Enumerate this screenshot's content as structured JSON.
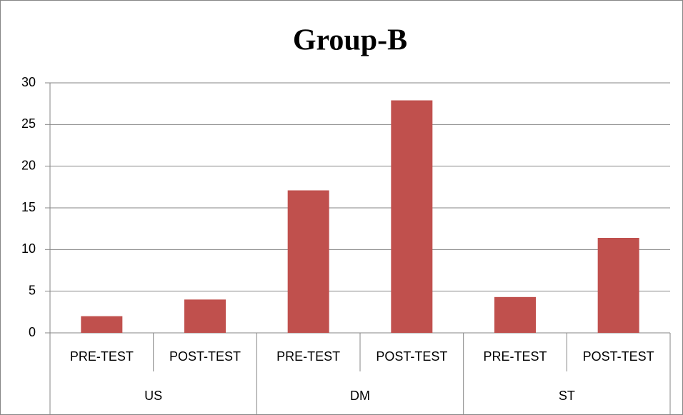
{
  "chart_data": {
    "type": "bar",
    "title": "Group-B",
    "groups": [
      "US",
      "DM",
      "ST"
    ],
    "categories": [
      "PRE-TEST",
      "POST-TEST",
      "PRE-TEST",
      "POST-TEST",
      "PRE-TEST",
      "POST-TEST"
    ],
    "values": [
      2,
      4,
      17.1,
      27.9,
      4.3,
      11.4
    ],
    "color": "#c0504d",
    "ylim": [
      0,
      30
    ],
    "yticks": [
      0,
      5,
      10,
      15,
      20,
      25,
      30
    ],
    "grid": true
  }
}
